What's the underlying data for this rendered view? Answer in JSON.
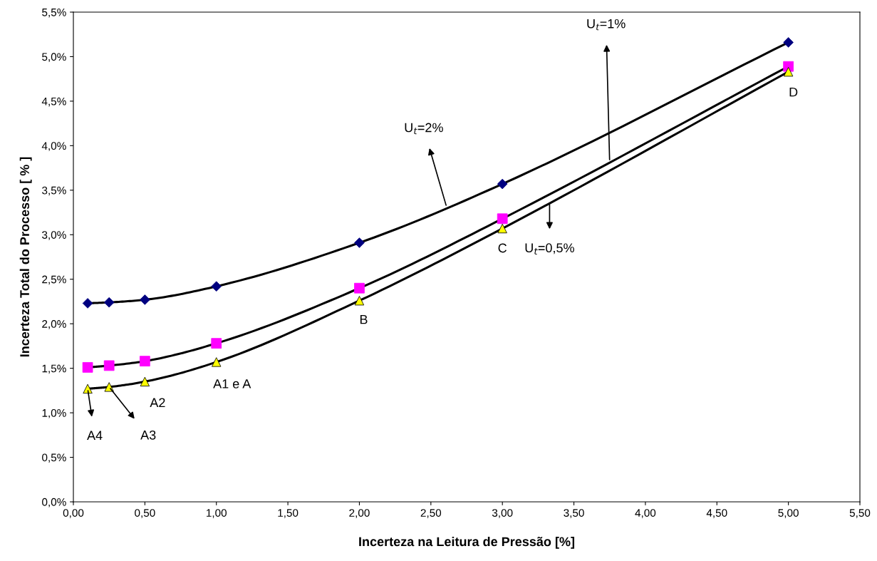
{
  "chart_data": {
    "type": "line",
    "xlabel": "Incerteza na Leitura de Pressão [%]",
    "ylabel": "Incerteza Total do Processo [ % ]",
    "x": [
      0.1,
      0.25,
      0.5,
      1.0,
      2.0,
      3.0,
      5.0
    ],
    "series": [
      {
        "color": "#000080",
        "marker": "diamond",
        "values": [
          2.23,
          2.24,
          2.27,
          2.42,
          2.91,
          3.57,
          5.16
        ]
      },
      {
        "color": "#ff00ff",
        "marker": "square",
        "values": [
          1.51,
          1.53,
          1.58,
          1.78,
          2.4,
          3.18,
          4.89
        ]
      },
      {
        "color": "#ffff00",
        "marker": "triangle",
        "values": [
          1.27,
          1.29,
          1.35,
          1.57,
          2.26,
          3.07,
          4.83
        ]
      }
    ],
    "xlim": [
      0,
      5.5
    ],
    "xticks": [
      {
        "value": 0,
        "label": "0,00"
      },
      {
        "value": 0.5,
        "label": "0,50"
      },
      {
        "value": 1.0,
        "label": "1,00"
      },
      {
        "value": 1.5,
        "label": "1,50"
      },
      {
        "value": 2.0,
        "label": "2,00"
      },
      {
        "value": 2.5,
        "label": "2,50"
      },
      {
        "value": 3.0,
        "label": "3,00"
      },
      {
        "value": 3.5,
        "label": "3,50"
      },
      {
        "value": 4.0,
        "label": "4,00"
      },
      {
        "value": 4.5,
        "label": "4,50"
      },
      {
        "value": 5.0,
        "label": "5,00"
      },
      {
        "value": 5.5,
        "label": "5,50"
      }
    ],
    "ylim": [
      0,
      5.5
    ],
    "yticks": [
      {
        "value": 0,
        "label": "0,0%"
      },
      {
        "value": 0.5,
        "label": "0,5%"
      },
      {
        "value": 1.0,
        "label": "1,0%"
      },
      {
        "value": 1.5,
        "label": "1,5%"
      },
      {
        "value": 2.0,
        "label": "2,0%"
      },
      {
        "value": 2.5,
        "label": "2,5%"
      },
      {
        "value": 3.0,
        "label": "3,0%"
      },
      {
        "value": 3.5,
        "label": "3,5%"
      },
      {
        "value": 4.0,
        "label": "4,0%"
      },
      {
        "value": 4.5,
        "label": "4,5%"
      },
      {
        "value": 5.0,
        "label": "5,0%"
      },
      {
        "value": 5.5,
        "label": "5,5%"
      }
    ],
    "grid": false,
    "legend": false,
    "line_style": "solid",
    "annotations": [
      {
        "text": "U$_{t}$=2%",
        "x": 2.61,
        "y": 3.31
      },
      {
        "text": "U$_{t}$=1%",
        "x": 3.75,
        "y": 3.82
      },
      {
        "text": "U$_{t}$=0,5%",
        "x": 3.33,
        "y": 3.36
      },
      {
        "text": "A4",
        "x": 0.1,
        "y": 1.27
      },
      {
        "text": "A3",
        "x": 0.25,
        "y": 1.29
      },
      {
        "text": "A2",
        "x": 0.5,
        "y": 1.35
      },
      {
        "text": "A1 e A",
        "x": 1.0,
        "y": 1.57
      },
      {
        "text": "B",
        "x": 2.0,
        "y": 2.26
      },
      {
        "text": "C",
        "x": 3.0,
        "y": 3.07
      },
      {
        "text": "D",
        "x": 5.0,
        "y": 4.83
      }
    ]
  }
}
